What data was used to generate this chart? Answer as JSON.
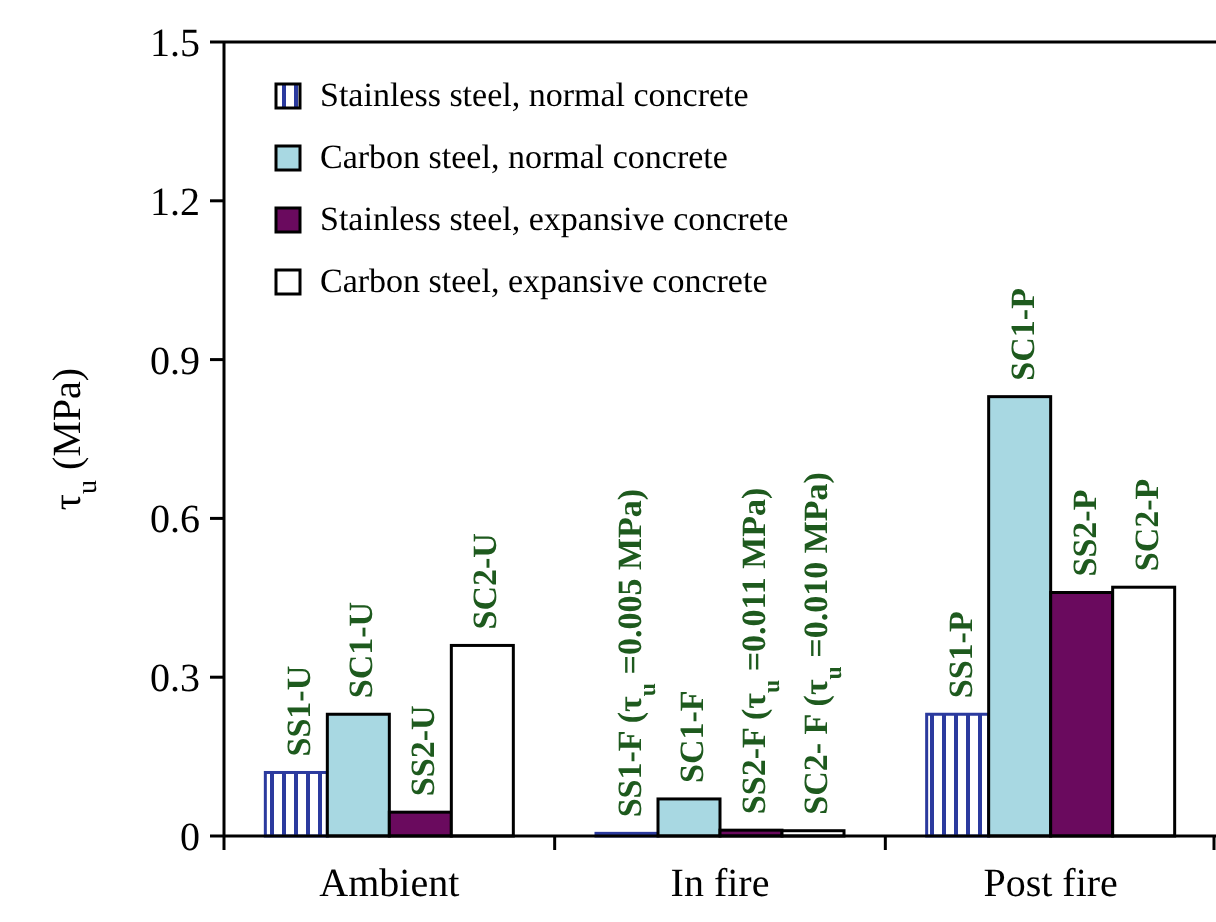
{
  "chart_data": {
    "type": "bar",
    "ylabel": "τ$_{u}$ (MPa)",
    "categories": [
      "Ambient",
      "In fire",
      "Post fire"
    ],
    "ylim": [
      0,
      1.5
    ],
    "yticks": [
      0,
      0.3,
      0.6,
      0.9,
      1.2,
      1.5
    ],
    "legend": "top left",
    "series": [
      {
        "name": "Stainless steel, normal concrete",
        "color": "#2b3a9e",
        "values": [
          0.12,
          0.005,
          0.23
        ],
        "value_labels": [
          "SS1-U",
          "SS1-F (τ$_{u}$ =0.005 MPa)",
          "SS1-P"
        ]
      },
      {
        "name": "Carbon steel, normal concrete",
        "color": "#a8d8e2",
        "values": [
          0.23,
          0.07,
          0.83
        ],
        "value_labels": [
          "SC1-U",
          "SC1-F",
          "SC1-P"
        ]
      },
      {
        "name": "Stainless steel, expansive concrete",
        "color": "#6a0a5e",
        "values": [
          0.045,
          0.011,
          0.46
        ],
        "value_labels": [
          "SS2-U",
          "SS2-F (τ$_{u}$ =0.011 MPa)",
          "SS2-P"
        ]
      },
      {
        "name": "Carbon steel, expansive concrete",
        "color": "#ffffff",
        "values": [
          0.36,
          0.01,
          0.47
        ],
        "value_labels": [
          "SC2-U",
          "SC2- F (τ$_{u}$ =0.010 MPa)",
          "SC2-P"
        ]
      }
    ]
  }
}
